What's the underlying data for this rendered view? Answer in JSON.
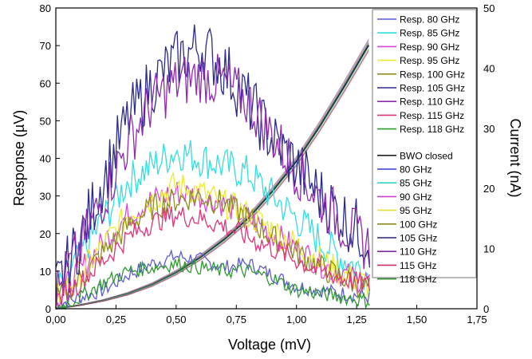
{
  "chart_data": {
    "type": "line",
    "xlabel": "Voltage (mV)",
    "ylabel": "Response (µV)",
    "y2label": "Current (nA)",
    "xlim": [
      0,
      1.75
    ],
    "ylim": [
      0,
      80
    ],
    "y2lim": [
      0,
      50
    ],
    "x_ticks": [
      "0,00",
      "0,25",
      "0,50",
      "0,75",
      "1,00",
      "1,25",
      "1,50",
      "1,75"
    ],
    "y_ticks": [
      "0",
      "10",
      "20",
      "30",
      "40",
      "50",
      "60",
      "70",
      "80"
    ],
    "y2_ticks": [
      "0",
      "10",
      "20",
      "30",
      "40",
      "50"
    ],
    "grid": false,
    "legend_position": "top-right",
    "legend": {
      "response": [
        "Resp. 80 GHz",
        "Resp. 85 GHz",
        "Resp. 90 GHz",
        "Resp. 95 GHz",
        "Resp. 100 GHz",
        "Resp. 105 GHz",
        "Resp. 110 GHz",
        "Resp. 115 GHz",
        "Resp. 118 GHz"
      ],
      "current": [
        "BWO closed",
        "80 GHz",
        "85 GHz",
        "90 GHz",
        "95 GHz",
        "100 GHz",
        "105 GHz",
        "110 GHz",
        "115 GHz",
        "118 GHz"
      ]
    },
    "response_series": [
      {
        "name": "Resp. 80 GHz",
        "color": "#5b5bd6",
        "x": [
          0,
          0.1,
          0.2,
          0.3,
          0.4,
          0.5,
          0.6,
          0.7,
          0.8,
          0.9,
          1.0,
          1.1,
          1.2,
          1.31
        ],
        "y": [
          1,
          3,
          5,
          9,
          12,
          14,
          13,
          11,
          12,
          9,
          6,
          5,
          4,
          3
        ]
      },
      {
        "name": "Resp. 85 GHz",
        "color": "#33dede",
        "x": [
          0,
          0.1,
          0.2,
          0.3,
          0.4,
          0.5,
          0.6,
          0.7,
          0.8,
          0.9,
          1.0,
          1.1,
          1.2,
          1.31
        ],
        "y": [
          4,
          14,
          24,
          34,
          38,
          42,
          40,
          38,
          36,
          30,
          24,
          18,
          13,
          9
        ]
      },
      {
        "name": "Resp. 90 GHz",
        "color": "#d946d9",
        "x": [
          0,
          0.1,
          0.2,
          0.3,
          0.4,
          0.5,
          0.6,
          0.7,
          0.8,
          0.9,
          1.0,
          1.1,
          1.2,
          1.31
        ],
        "y": [
          3,
          10,
          18,
          25,
          29,
          31,
          30,
          28,
          24,
          20,
          16,
          12,
          9,
          7
        ]
      },
      {
        "name": "Resp. 95 GHz",
        "color": "#ebeb33",
        "x": [
          0,
          0.1,
          0.2,
          0.3,
          0.4,
          0.5,
          0.6,
          0.7,
          0.8,
          0.9,
          1.0,
          1.1,
          1.2,
          1.31
        ],
        "y": [
          3,
          9,
          17,
          25,
          29,
          33,
          31,
          28,
          25,
          21,
          17,
          13,
          9,
          6
        ]
      },
      {
        "name": "Resp. 100 GHz",
        "color": "#8f8f21",
        "x": [
          0,
          0.1,
          0.2,
          0.3,
          0.4,
          0.5,
          0.6,
          0.7,
          0.8,
          0.9,
          1.0,
          1.1,
          1.2,
          1.31
        ],
        "y": [
          2,
          8,
          15,
          22,
          27,
          29,
          30,
          28,
          24,
          19,
          15,
          11,
          8,
          5
        ]
      },
      {
        "name": "Resp. 105 GHz",
        "color": "#2a2a8f",
        "x": [
          0,
          0.1,
          0.2,
          0.3,
          0.4,
          0.5,
          0.6,
          0.7,
          0.8,
          0.9,
          1.0,
          1.1,
          1.2,
          1.31
        ],
        "y": [
          5,
          18,
          35,
          50,
          60,
          66,
          70,
          64,
          55,
          45,
          38,
          30,
          24,
          18
        ]
      },
      {
        "name": "Resp. 110 GHz",
        "color": "#8f2ab0",
        "x": [
          0,
          0.1,
          0.2,
          0.3,
          0.4,
          0.5,
          0.6,
          0.7,
          0.8,
          0.9,
          1.0,
          1.1,
          1.2,
          1.31
        ],
        "y": [
          4,
          16,
          30,
          44,
          55,
          60,
          62,
          60,
          55,
          46,
          37,
          29,
          22,
          16
        ]
      },
      {
        "name": "Resp. 115 GHz",
        "color": "#e0337a",
        "x": [
          0,
          0.1,
          0.2,
          0.3,
          0.4,
          0.5,
          0.6,
          0.7,
          0.8,
          0.9,
          1.0,
          1.1,
          1.2,
          1.31
        ],
        "y": [
          2,
          7,
          13,
          19,
          23,
          25,
          24,
          22,
          19,
          16,
          13,
          10,
          8,
          6
        ]
      },
      {
        "name": "Resp. 118 GHz",
        "color": "#2f9a2f",
        "x": [
          0,
          0.1,
          0.2,
          0.3,
          0.4,
          0.5,
          0.6,
          0.7,
          0.8,
          0.9,
          1.0,
          1.1,
          1.2,
          1.31
        ],
        "y": [
          0,
          3,
          7,
          10,
          11,
          12,
          11,
          10,
          10,
          8,
          5,
          4,
          3,
          2
        ]
      }
    ],
    "current_series": [
      {
        "name": "BWO closed",
        "color": "#222222",
        "x": [
          0,
          0.1,
          0.2,
          0.3,
          0.4,
          0.5,
          0.6,
          0.7,
          0.8,
          0.9,
          1.0,
          1.1,
          1.2,
          1.31
        ],
        "y": [
          0,
          0.6,
          1.4,
          2.5,
          4,
          6,
          8.5,
          11.5,
          15,
          19.5,
          24.5,
          30.5,
          37,
          44.5
        ]
      }
    ],
    "current_legend_colors": [
      "#222222",
      "#3a3ad0",
      "#2fd0d0",
      "#d040d0",
      "#e0e030",
      "#8a8a20",
      "#26267a",
      "#7a2aa0",
      "#d0306a",
      "#2a8a2a"
    ]
  }
}
